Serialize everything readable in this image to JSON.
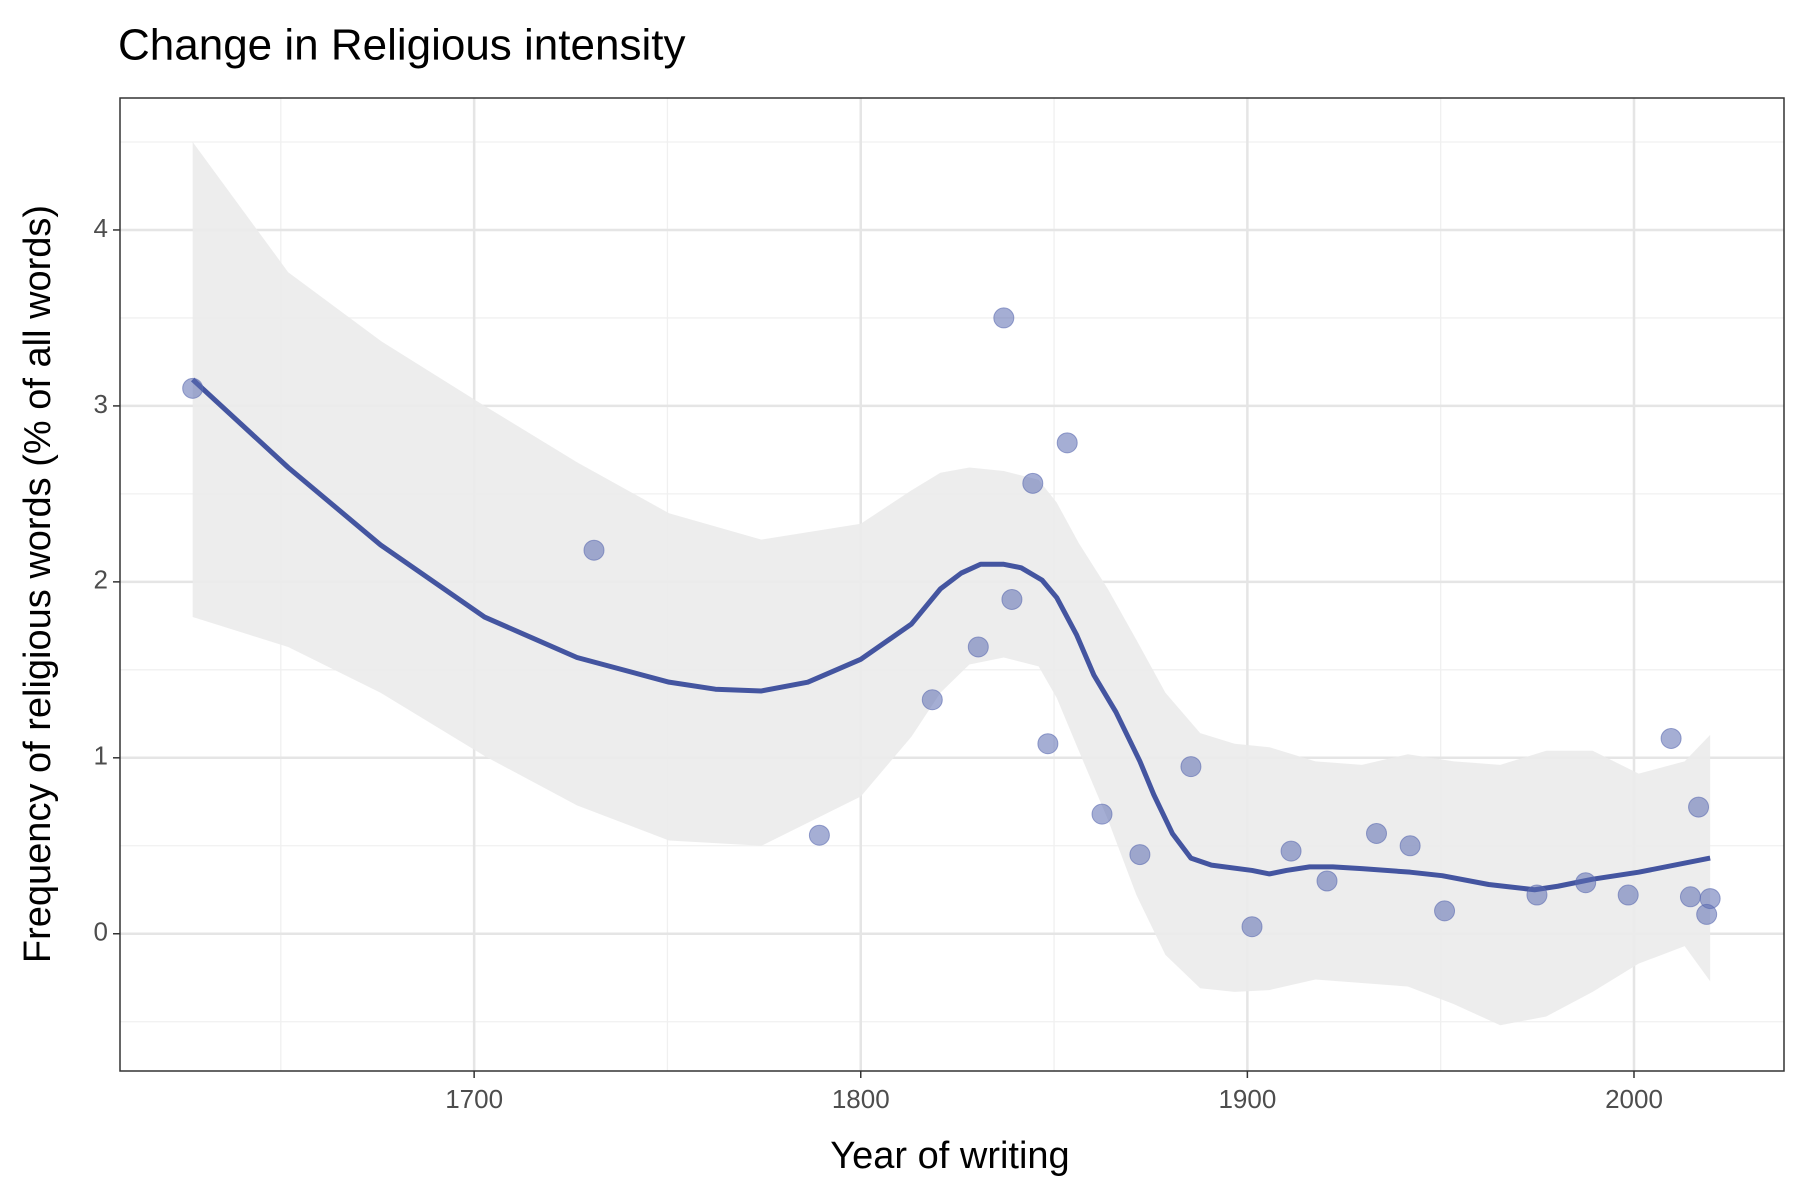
{
  "chart_data": {
    "type": "scatter",
    "title": "Change in Religious intensity",
    "x_label": "Year of writing",
    "y_label": "Frequency of religious words (% of all words)",
    "xlim": [
      1608.4,
      2038.8
    ],
    "ylim": [
      -0.78,
      4.75
    ],
    "xticks": [
      1700,
      1800,
      1900,
      2000
    ],
    "yticks": [
      0,
      1,
      2,
      3,
      4
    ],
    "x_minor_ticks": [
      1650,
      1750,
      1850,
      1950
    ],
    "y_minor_ticks": [
      -0.5,
      0.5,
      1.5,
      2.5,
      3.5,
      4.5
    ],
    "grid": true,
    "points": {
      "color": "#5b6bb0",
      "x": [
        1627.2,
        1731.0,
        1789.3,
        1818.5,
        1830.4,
        1837.0,
        1839.1,
        1844.5,
        1848.4,
        1853.4,
        1862.4,
        1872.2,
        1885.4,
        1901.2,
        1911.3,
        1920.6,
        1933.4,
        1942.1,
        1951.0,
        1974.9,
        1987.5,
        1998.5,
        2009.6,
        2014.6,
        2016.7,
        2019.7,
        2018.8
      ],
      "y": [
        3.1,
        2.18,
        0.56,
        1.33,
        1.63,
        3.5,
        1.9,
        2.56,
        1.08,
        2.79,
        0.68,
        0.45,
        0.95,
        0.04,
        0.47,
        0.3,
        0.57,
        0.5,
        0.13,
        0.22,
        0.29,
        0.22,
        1.11,
        0.21,
        0.72,
        0.2,
        0.11
      ]
    },
    "smooth": {
      "color": "#4455a0",
      "x": [
        1627.2,
        1651.9,
        1675.8,
        1702.7,
        1726.6,
        1750.4,
        1762.4,
        1774.3,
        1786.3,
        1800.0,
        1813.1,
        1820.6,
        1826.0,
        1831.0,
        1837.0,
        1841.5,
        1846.9,
        1850.7,
        1855.8,
        1860.3,
        1866.0,
        1872.2,
        1875.8,
        1880.6,
        1885.4,
        1890.7,
        1901.2,
        1905.7,
        1910.1,
        1916.1,
        1922.1,
        1929.6,
        1942.1,
        1950.4,
        1962.4,
        1974.3,
        1980.3,
        1989.3,
        2001.2,
        2019.7
      ],
      "y": [
        3.15,
        2.65,
        2.21,
        1.8,
        1.57,
        1.43,
        1.39,
        1.38,
        1.43,
        1.56,
        1.76,
        1.96,
        2.05,
        2.1,
        2.1,
        2.08,
        2.01,
        1.91,
        1.7,
        1.47,
        1.26,
        0.98,
        0.79,
        0.57,
        0.43,
        0.39,
        0.36,
        0.34,
        0.36,
        0.38,
        0.38,
        0.37,
        0.35,
        0.33,
        0.28,
        0.25,
        0.27,
        0.31,
        0.35,
        0.43
      ]
    },
    "band": {
      "color": "#ebebeb",
      "x": [
        1627.2,
        1651.9,
        1675.8,
        1702.7,
        1726.6,
        1750.4,
        1774.3,
        1800.0,
        1813.1,
        1820.6,
        1828.1,
        1837.0,
        1846.0,
        1850.7,
        1856.4,
        1863.9,
        1871.3,
        1878.8,
        1887.8,
        1896.7,
        1905.7,
        1917.6,
        1929.6,
        1941.5,
        1953.4,
        1965.4,
        1977.3,
        1989.3,
        2001.2,
        2013.1,
        2019.7
      ],
      "upper": [
        4.5,
        3.76,
        3.37,
        3.0,
        2.68,
        2.39,
        2.24,
        2.33,
        2.52,
        2.62,
        2.65,
        2.63,
        2.58,
        2.45,
        2.22,
        1.96,
        1.67,
        1.37,
        1.14,
        1.08,
        1.06,
        0.98,
        0.96,
        1.02,
        0.98,
        0.96,
        1.04,
        1.04,
        0.91,
        0.98,
        1.13
      ],
      "lower": [
        1.8,
        1.63,
        1.37,
        1.01,
        0.73,
        0.53,
        0.5,
        0.78,
        1.12,
        1.37,
        1.53,
        1.57,
        1.52,
        1.34,
        1.04,
        0.65,
        0.22,
        -0.12,
        -0.31,
        -0.33,
        -0.32,
        -0.26,
        -0.28,
        -0.3,
        -0.4,
        -0.52,
        -0.47,
        -0.33,
        -0.17,
        -0.07,
        -0.27
      ]
    }
  }
}
